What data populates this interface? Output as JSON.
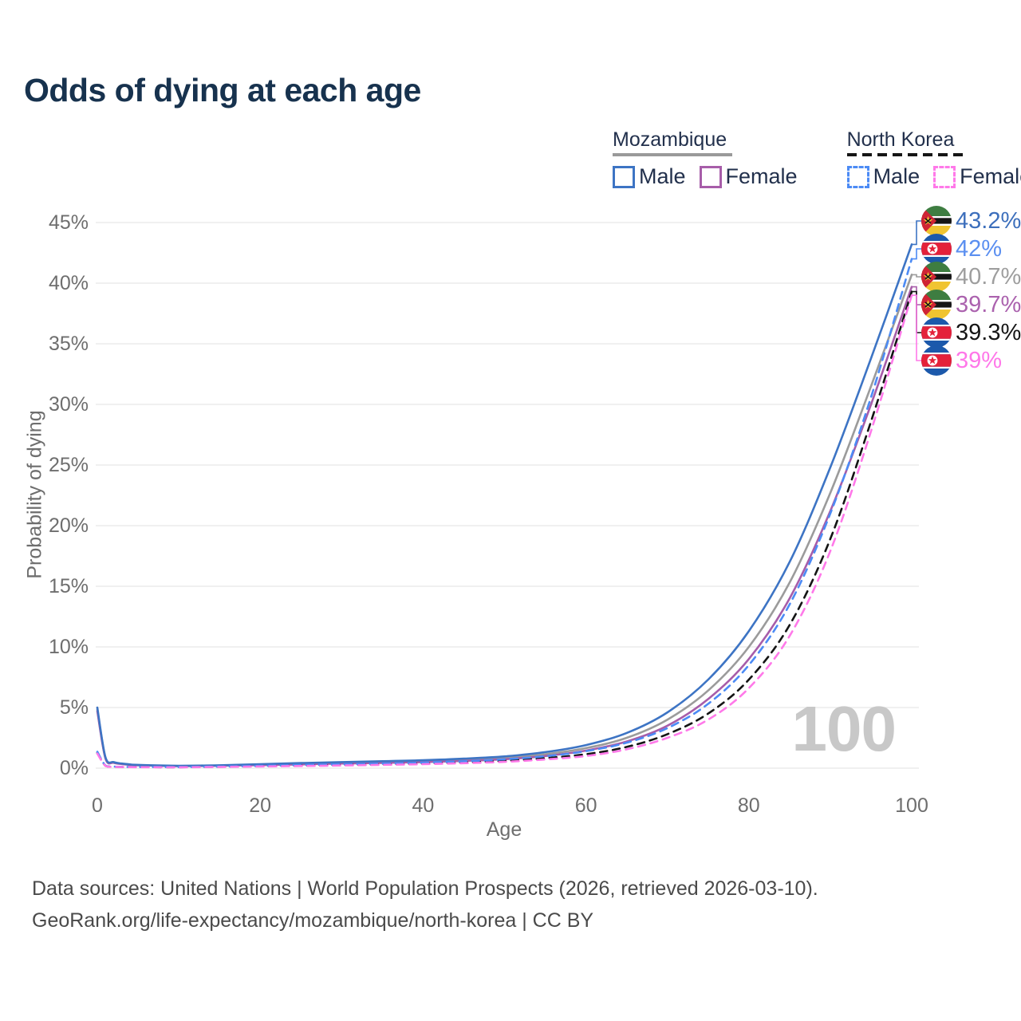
{
  "title": "Odds of dying at each age",
  "legend": {
    "groups": [
      {
        "name": "Mozambique",
        "line_style": "solid",
        "underline_color": "#9a9a9a",
        "items": [
          {
            "label": "Male",
            "color": "#3d74c4",
            "dashed": false
          },
          {
            "label": "Female",
            "color": "#a75da9",
            "dashed": false
          }
        ]
      },
      {
        "name": "North Korea",
        "line_style": "dashed",
        "underline_color": "#151515",
        "items": [
          {
            "label": "Male",
            "color": "#4c8bf5",
            "dashed": true
          },
          {
            "label": "Female",
            "color": "#ff79e9",
            "dashed": true
          }
        ]
      }
    ]
  },
  "chart_data": {
    "type": "line",
    "title": "Odds of dying at each age",
    "xlabel": "Age",
    "ylabel": "Probability of dying",
    "xlim": [
      0,
      100
    ],
    "ylim": [
      0,
      45
    ],
    "grid": "horizontal",
    "legend_position": "top-right",
    "watermark": "100",
    "x_ticks": [
      {
        "value": 0,
        "label": "0"
      },
      {
        "value": 20,
        "label": "20"
      },
      {
        "value": 40,
        "label": "40"
      },
      {
        "value": 60,
        "label": "60"
      },
      {
        "value": 80,
        "label": "80"
      },
      {
        "value": 100,
        "label": "100"
      }
    ],
    "y_ticks": [
      {
        "value": 0,
        "label": "0%"
      },
      {
        "value": 5,
        "label": "5%"
      },
      {
        "value": 10,
        "label": "10%"
      },
      {
        "value": 15,
        "label": "15%"
      },
      {
        "value": 20,
        "label": "20%"
      },
      {
        "value": 25,
        "label": "25%"
      },
      {
        "value": 30,
        "label": "30%"
      },
      {
        "value": 35,
        "label": "35%"
      },
      {
        "value": 40,
        "label": "40%"
      },
      {
        "value": 45,
        "label": "45%"
      }
    ],
    "x": [
      0,
      1,
      2,
      3,
      4,
      5,
      10,
      15,
      20,
      25,
      30,
      35,
      40,
      45,
      50,
      55,
      60,
      65,
      70,
      75,
      80,
      85,
      90,
      95,
      100
    ],
    "series": [
      {
        "id": "moz-male",
        "name": "Mozambique Male",
        "flag": "mozambique",
        "line_style": "solid",
        "color": "#3d74c4",
        "label_color": "#3d6fbc",
        "end_label": "43.2%",
        "end_value": 43.2,
        "values": [
          5.0,
          0.9,
          0.5,
          0.38,
          0.31,
          0.27,
          0.2,
          0.24,
          0.33,
          0.42,
          0.5,
          0.57,
          0.65,
          0.78,
          0.97,
          1.32,
          1.9,
          2.9,
          4.6,
          7.3,
          11.3,
          17.0,
          24.8,
          33.8,
          43.2
        ]
      },
      {
        "id": "nk-male",
        "name": "North Korea Male",
        "flag": "north-korea",
        "line_style": "dashed",
        "color": "#4c8bf5",
        "label_color": "#5b8ff0",
        "end_label": "42%",
        "end_value": 42.0,
        "values": [
          1.35,
          0.22,
          0.13,
          0.11,
          0.1,
          0.095,
          0.09,
          0.13,
          0.19,
          0.26,
          0.32,
          0.38,
          0.46,
          0.57,
          0.73,
          0.98,
          1.4,
          2.1,
          3.3,
          5.3,
          8.5,
          13.5,
          21.0,
          30.6,
          42.0
        ]
      },
      {
        "id": "moz-all",
        "name": "Mozambique",
        "flag": "mozambique",
        "line_style": "solid",
        "color": "#9b9b9b",
        "label_color": "#9e9e9e",
        "end_label": "40.7%",
        "end_value": 40.7,
        "values": [
          4.85,
          0.85,
          0.47,
          0.36,
          0.29,
          0.25,
          0.18,
          0.22,
          0.29,
          0.37,
          0.44,
          0.5,
          0.57,
          0.68,
          0.85,
          1.15,
          1.65,
          2.5,
          4.0,
          6.4,
          10.0,
          15.3,
          22.7,
          31.5,
          40.7
        ]
      },
      {
        "id": "moz-female",
        "name": "Mozambique Female",
        "flag": "mozambique",
        "line_style": "solid",
        "color": "#a75da9",
        "label_color": "#ab62ae",
        "end_label": "39.7%",
        "end_value": 39.7,
        "values": [
          4.7,
          0.8,
          0.44,
          0.34,
          0.27,
          0.24,
          0.17,
          0.2,
          0.25,
          0.31,
          0.38,
          0.43,
          0.5,
          0.6,
          0.74,
          1.0,
          1.45,
          2.2,
          3.5,
          5.7,
          9.0,
          14.0,
          21.2,
          30.0,
          39.7
        ]
      },
      {
        "id": "nk-all",
        "name": "North Korea",
        "flag": "north-korea",
        "line_style": "dashed",
        "color": "#141414",
        "label_color": "#151515",
        "end_label": "39.3%",
        "end_value": 39.3,
        "values": [
          1.25,
          0.2,
          0.12,
          0.1,
          0.09,
          0.085,
          0.08,
          0.11,
          0.16,
          0.21,
          0.26,
          0.31,
          0.38,
          0.47,
          0.6,
          0.82,
          1.15,
          1.75,
          2.8,
          4.5,
          7.3,
          11.8,
          18.9,
          28.6,
          39.3
        ]
      },
      {
        "id": "nk-female",
        "name": "North Korea Female",
        "flag": "north-korea",
        "line_style": "dashed",
        "color": "#ff79e9",
        "label_color": "#ff77e9",
        "end_label": "39%",
        "end_value": 39.0,
        "values": [
          1.2,
          0.19,
          0.11,
          0.095,
          0.085,
          0.08,
          0.075,
          0.1,
          0.14,
          0.18,
          0.22,
          0.27,
          0.33,
          0.41,
          0.52,
          0.72,
          1.0,
          1.55,
          2.5,
          4.0,
          6.6,
          10.9,
          17.9,
          27.8,
          39.0
        ]
      }
    ]
  },
  "footer": {
    "line1": "Data sources: United Nations | World Population Prospects (2026, retrieved 2026-03-10).",
    "line2": "GeoRank.org/life-expectancy/mozambique/north-korea | CC BY"
  }
}
